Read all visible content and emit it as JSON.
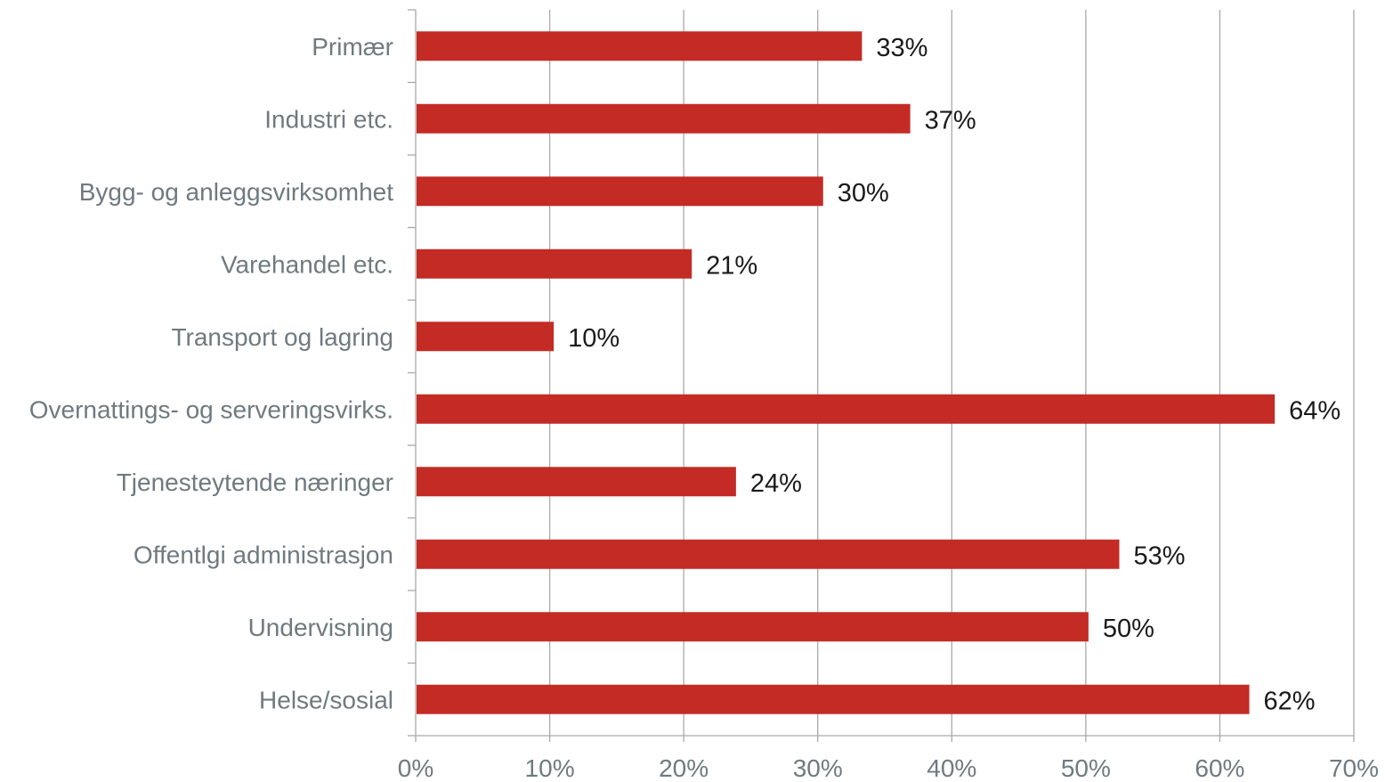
{
  "chart_data": {
    "type": "bar",
    "orientation": "horizontal",
    "title": "",
    "xlabel": "",
    "ylabel": "",
    "categories": [
      "Primær",
      "Industri etc.",
      "Bygg- og anleggsvirksomhet",
      "Varehandel etc.",
      "Transport og lagring",
      "Overnattings- og serveringsvirks.",
      "Tjenesteytende næringer",
      "Offentlgi administrasjon",
      "Undervisning",
      "Helse/sosial"
    ],
    "values": [
      33.3,
      36.9,
      30.4,
      20.6,
      10.3,
      64.1,
      23.9,
      52.5,
      50.2,
      62.2
    ],
    "data_labels": [
      "33%",
      "37%",
      "30%",
      "21%",
      "10%",
      "64%",
      "24%",
      "53%",
      "50%",
      "62%"
    ],
    "xlim": [
      0,
      70
    ],
    "x_ticks": [
      0,
      10,
      20,
      30,
      40,
      50,
      60,
      70
    ],
    "x_tick_labels": [
      "0%",
      "10%",
      "20%",
      "30%",
      "40%",
      "50%",
      "60%",
      "70%"
    ],
    "grid": "vertical",
    "legend": "none",
    "colors": {
      "bar": "#c42b25",
      "grid": "#a9a9a9",
      "axis": "#a9a9a9",
      "category_text": "#6f7a80",
      "tick_text": "#6f7a80",
      "value_text": "#1a1a1a"
    }
  }
}
